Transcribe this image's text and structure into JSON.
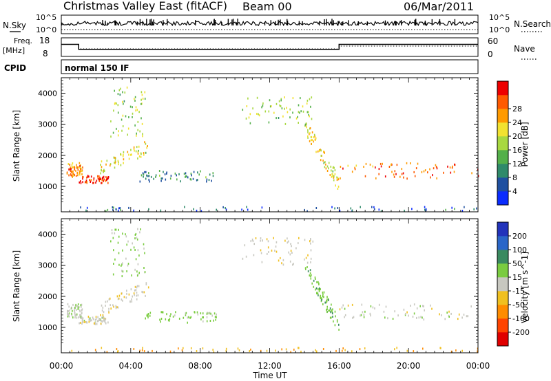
{
  "header": {
    "station": "Christmas Valley East (fitACF)",
    "beam": "Beam 00",
    "date": "06/Mar/2011"
  },
  "strip": {
    "nsky_label": "N.Sky",
    "nsearch_label": "N.Search",
    "noise_ticks": [
      "10^5",
      "10^0"
    ],
    "freq_label": "Freq.",
    "freq_unit": "[MHz]",
    "freq_ticks": [
      "18",
      "8"
    ],
    "nave_label": "Nave",
    "nave_ticks": [
      "60",
      "0"
    ],
    "cpid_label": "CPID",
    "cpid_value": "normal 150 IF",
    "freq_schedule": [
      {
        "t": 0,
        "v": 14.5
      },
      {
        "t": 1.0,
        "v": 14.5
      },
      {
        "t": 1.0,
        "v": 11.8
      },
      {
        "t": 16.0,
        "v": 11.8
      },
      {
        "t": 16.0,
        "v": 14.5
      },
      {
        "t": 24.0,
        "v": 14.5
      }
    ]
  },
  "xaxis": {
    "label": "Time UT",
    "ticks": [
      "00:00",
      "04:00",
      "08:00",
      "12:00",
      "16:00",
      "20:00",
      "00:00"
    ]
  },
  "panels": {
    "power": {
      "ylabel": "Slant Range [km]",
      "yticks": [
        "1000",
        "2000",
        "3000",
        "4000"
      ],
      "cb_label": "Power [dB]",
      "cb_ticks": [
        "4",
        "8",
        "12",
        "16",
        "20",
        "24",
        "28"
      ],
      "cb_colors": [
        "#0a2cff",
        "#1f50a0",
        "#2f8a6a",
        "#54b04a",
        "#a8d840",
        "#f2e230",
        "#ff9a00",
        "#ff5a00",
        "#ee0000"
      ]
    },
    "velocity": {
      "ylabel": "Slant Range [km]",
      "yticks": [
        "1000",
        "2000",
        "3000",
        "4000"
      ],
      "cb_label": "Velocity [m s^-1]",
      "cb_ticks": [
        "200",
        "100",
        "50",
        "15",
        "-15",
        "-50",
        "-100",
        "-200"
      ],
      "cb_colors": [
        "#2233bb",
        "#2a66c8",
        "#3a8a60",
        "#7acc40",
        "#c8c8c0",
        "#f0c020",
        "#ff8c00",
        "#ff4400",
        "#e00000"
      ]
    }
  },
  "chart_data": {
    "type": "heatmap",
    "x_unit": "hours UT",
    "xlim": [
      0,
      24
    ],
    "y_unit": "km",
    "ylim": [
      180,
      4500
    ],
    "title": "Christmas Valley East (fitACF) Beam 00 06/Mar/2011",
    "xlabel": "Time UT",
    "ylabel": "Slant Range [km]",
    "grid": false,
    "regions": [
      {
        "name": "early-band",
        "t0": 0.3,
        "t1": 1.2,
        "r0": 1300,
        "r1": 1750,
        "power": 22,
        "vel": 5
      },
      {
        "name": "early-band-strong",
        "t0": 1.0,
        "t1": 2.7,
        "r0": 1100,
        "r1": 1350,
        "power": 27,
        "vel": 0
      },
      {
        "name": "rising-arc",
        "t0": 2.2,
        "t1": 5.0,
        "r0": 1350,
        "r1": 2500,
        "power": 18,
        "vel": -8
      },
      {
        "name": "upper-arc",
        "t0": 2.8,
        "t1": 4.8,
        "r0": 2600,
        "r1": 4200,
        "power": 14,
        "vel": 20
      },
      {
        "name": "mid-band",
        "t0": 4.5,
        "t1": 9.0,
        "r0": 1150,
        "r1": 1500,
        "power": 9,
        "vel": 30
      },
      {
        "name": "late-arc",
        "t0": 10.4,
        "t1": 14.5,
        "r0": 3000,
        "r1": 3900,
        "power": 15,
        "vel": -5
      },
      {
        "name": "descending",
        "t0": 14.0,
        "t1": 16.0,
        "r0": 900,
        "r1": 3200,
        "power": 18,
        "vel": 40
      },
      {
        "name": "evening-band",
        "t0": 16.0,
        "t1": 24.0,
        "r0": 1250,
        "r1": 1750,
        "power": 24,
        "vel": 0
      },
      {
        "name": "ground-scatter",
        "t0": 0.0,
        "t1": 24.0,
        "r0": 200,
        "r1": 340,
        "power": 6,
        "vel": -70
      }
    ]
  }
}
